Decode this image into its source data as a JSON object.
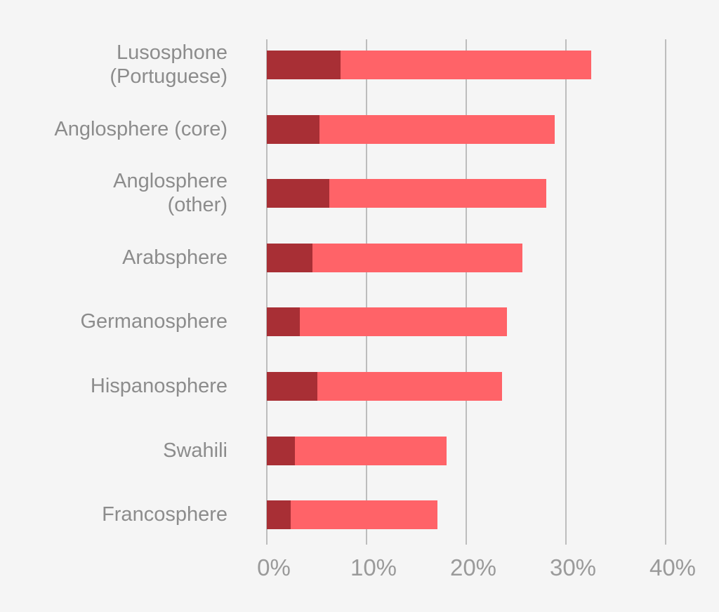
{
  "colors": {
    "background": "#f5f5f5",
    "series_dark": "#a82f35",
    "series_light": "#ff6368",
    "grid": "#bdbdbd",
    "text": "#8c8c8c"
  },
  "chart_data": {
    "type": "bar",
    "orientation": "horizontal",
    "stacked": true,
    "title": "",
    "xlabel": "",
    "ylabel": "",
    "xlim": [
      0,
      40
    ],
    "x_ticks": [
      "0%",
      "10%",
      "20%",
      "30%",
      "40%"
    ],
    "grid": true,
    "legend": null,
    "categories": [
      "Lusosphone\n(Portuguese)",
      "Anglosphere (core)",
      "Anglosphere\n(other)",
      "Arabsphere",
      "Germanosphere",
      "Hispanosphere",
      "Swahili",
      "Francosphere"
    ],
    "series": [
      {
        "name": "dark segment",
        "color": "#a82f35",
        "values": [
          7.4,
          5.3,
          6.3,
          4.6,
          3.3,
          5.1,
          2.8,
          2.4
        ]
      },
      {
        "name": "light segment",
        "color": "#ff6368",
        "values": [
          25.1,
          23.6,
          21.7,
          21.0,
          20.8,
          18.5,
          15.2,
          14.7
        ]
      }
    ],
    "totals": [
      32.5,
      28.9,
      28.0,
      25.6,
      24.1,
      23.6,
      18.0,
      17.1
    ]
  }
}
